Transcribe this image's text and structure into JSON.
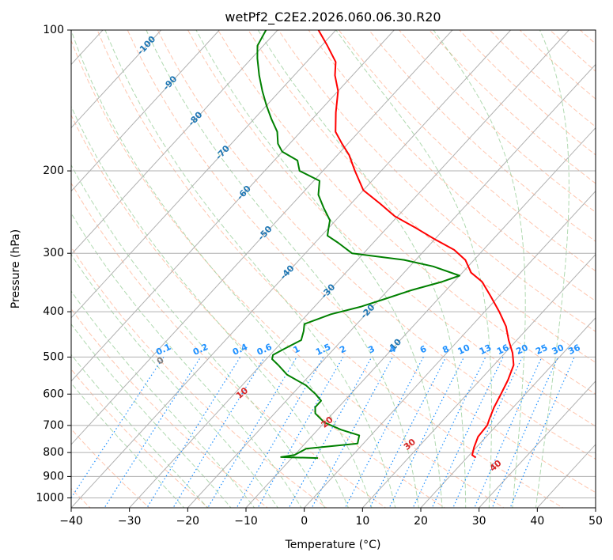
{
  "chart_data": {
    "type": "skew-t",
    "title": "wetPf2_C2E2.2026.060.06.30.R20",
    "xlabel": "Temperature (°C)",
    "ylabel": "Pressure (hPa)",
    "xlim": [
      -40,
      50
    ],
    "ylim": [
      1050,
      100
    ],
    "x_ticks": [
      "−40",
      "−30",
      "−20",
      "−10",
      "0",
      "10",
      "20",
      "30",
      "40",
      "50"
    ],
    "y_ticks": [
      "100",
      "200",
      "300",
      "400",
      "500",
      "600",
      "700",
      "800",
      "900",
      "1000"
    ],
    "x_tick_values": [
      -40,
      -30,
      -20,
      -10,
      0,
      10,
      20,
      30,
      40,
      50
    ],
    "y_tick_values": [
      100,
      200,
      300,
      400,
      500,
      600,
      700,
      800,
      900,
      1000
    ],
    "grid": true,
    "colors": {
      "temperature": "#ff0000",
      "dewpoint": "#008000",
      "isotherm": "#b0b0b0",
      "dry_adiabat": "#ffa07a",
      "moist_adiabat": "#8fc98f",
      "mixing_ratio": "#1e90ff",
      "isotherm_label": "#1f77b4",
      "positive_label": "#d62728",
      "zero_label": "#808080"
    },
    "series": [
      {
        "name": "Temperature",
        "points": [
          [
            21.5,
            820
          ],
          [
            20.5,
            810
          ],
          [
            19.6,
            780
          ],
          [
            18.6,
            740
          ],
          [
            18.4,
            700
          ],
          [
            17.8,
            680
          ],
          [
            16.7,
            640
          ],
          [
            15.8,
            600
          ],
          [
            14.8,
            560
          ],
          [
            13.4,
            520
          ],
          [
            11.3,
            490
          ],
          [
            8.6,
            460
          ],
          [
            6.0,
            430
          ],
          [
            2.5,
            400
          ],
          [
            -1.5,
            370
          ],
          [
            -5.2,
            345
          ],
          [
            -8.5,
            330
          ],
          [
            -11.5,
            310
          ],
          [
            -15.0,
            295
          ],
          [
            -20.0,
            280
          ],
          [
            -25.0,
            265
          ],
          [
            -30.5,
            250
          ],
          [
            -35.0,
            235
          ],
          [
            -40.0,
            220
          ],
          [
            -44.5,
            200
          ],
          [
            -48.0,
            185
          ],
          [
            -51.0,
            175
          ],
          [
            -54.0,
            165
          ],
          [
            -57.0,
            150
          ],
          [
            -60.0,
            135
          ],
          [
            -63.0,
            125
          ],
          [
            -65.0,
            117
          ],
          [
            -69.0,
            108
          ],
          [
            -73.0,
            100
          ]
        ]
      },
      {
        "name": "Dewpoint",
        "points": [
          [
            -5.5,
            822
          ],
          [
            -12.0,
            818
          ],
          [
            -10.0,
            810
          ],
          [
            -9.0,
            785
          ],
          [
            -1.0,
            765
          ],
          [
            -2.0,
            735
          ],
          [
            -6.0,
            715
          ],
          [
            -10.0,
            690
          ],
          [
            -13.0,
            660
          ],
          [
            -14.0,
            640
          ],
          [
            -14.0,
            620
          ],
          [
            -16.0,
            600
          ],
          [
            -19.0,
            575
          ],
          [
            -24.0,
            545
          ],
          [
            -27.0,
            520
          ],
          [
            -29.0,
            505
          ],
          [
            -29.5,
            495
          ],
          [
            -28.5,
            480
          ],
          [
            -27.0,
            460
          ],
          [
            -28.0,
            440
          ],
          [
            -29.0,
            425
          ],
          [
            -26.0,
            405
          ],
          [
            -22.0,
            390
          ],
          [
            -19.0,
            375
          ],
          [
            -16.0,
            360
          ],
          [
            -12.0,
            345
          ],
          [
            -10.0,
            335
          ],
          [
            -16.0,
            320
          ],
          [
            -22.0,
            310
          ],
          [
            -32.0,
            300
          ],
          [
            -36.0,
            285
          ],
          [
            -39.0,
            275
          ],
          [
            -40.0,
            265
          ],
          [
            -41.0,
            255
          ],
          [
            -44.0,
            240
          ],
          [
            -47.0,
            225
          ],
          [
            -49.0,
            210
          ],
          [
            -54.0,
            200
          ],
          [
            -56.0,
            190
          ],
          [
            -60.0,
            182
          ],
          [
            -62.0,
            175
          ],
          [
            -64.0,
            165
          ],
          [
            -67.0,
            155
          ],
          [
            -70.0,
            145
          ],
          [
            -73.0,
            135
          ],
          [
            -76.0,
            125
          ],
          [
            -79.0,
            115
          ],
          [
            -81.0,
            108
          ],
          [
            -82.0,
            100
          ]
        ]
      }
    ],
    "isotherm_labels": [
      "-100",
      "-90",
      "-80",
      "-70",
      "-60",
      "-50",
      "-40",
      "-30",
      "-20",
      "-10"
    ],
    "isotherm_label_values": [
      -100,
      -90,
      -80,
      -70,
      -60,
      -50,
      -40,
      -30,
      -20,
      -10
    ],
    "dry_adiabat_labels": [
      "0",
      "10",
      "20",
      "30",
      "40"
    ],
    "dry_adiabat_label_values": [
      0,
      10,
      20,
      30,
      40
    ],
    "mixing_ratio_labels": [
      "0.1",
      "0.2",
      "0.4",
      "0.6",
      "1",
      "1.5",
      "2",
      "3",
      "4",
      "6",
      "8",
      "10",
      "13",
      "16",
      "20",
      "25",
      "30",
      "36"
    ],
    "mixing_ratio_values": [
      0.1,
      0.2,
      0.4,
      0.6,
      1,
      1.5,
      2,
      3,
      4,
      6,
      8,
      10,
      13,
      16,
      20,
      25,
      30,
      36
    ]
  }
}
